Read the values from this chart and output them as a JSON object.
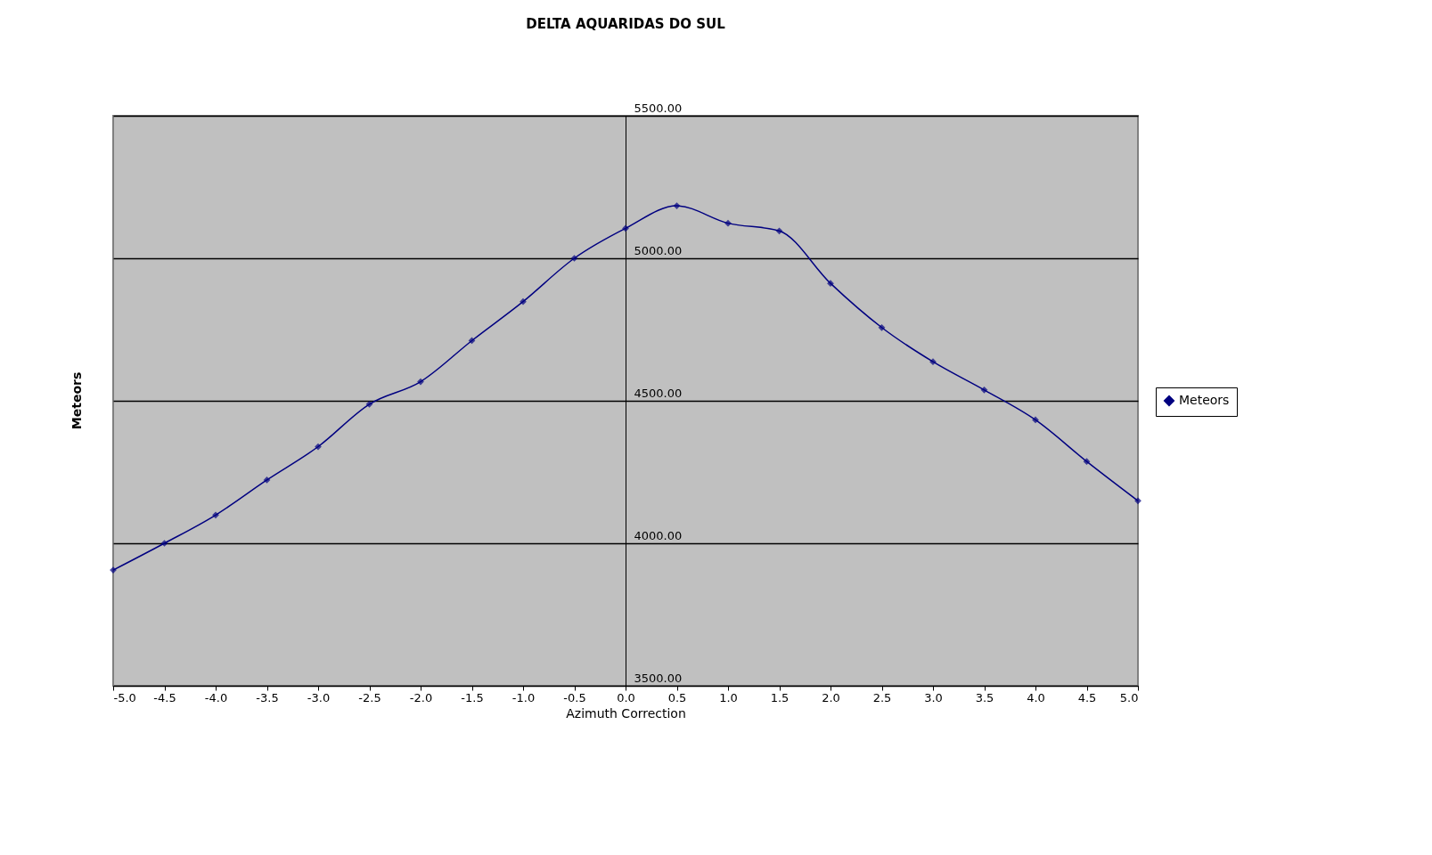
{
  "chart_data": {
    "type": "line",
    "title": "DELTA AQUARIDAS DO SUL",
    "xlabel": "Azimuth Correction",
    "ylabel": "Meteors",
    "x": [
      -5.0,
      -4.5,
      -4.0,
      -3.5,
      -3.0,
      -2.5,
      -2.0,
      -1.5,
      -1.0,
      -0.5,
      0.0,
      0.5,
      1.0,
      1.5,
      2.0,
      2.5,
      3.0,
      3.5,
      4.0,
      4.5,
      5.0
    ],
    "series": [
      {
        "name": "Meteors",
        "color": "#000080",
        "values": [
          3906,
          4000,
          4099,
          4222,
          4339,
          4488,
          4567,
          4711,
          4848,
          5000,
          5105,
          5184,
          5123,
          5096,
          4912,
          4757,
          4637,
          4538,
          4433,
          4287,
          4149
        ]
      }
    ],
    "xlim": [
      -5.0,
      5.0
    ],
    "xticks": [
      {
        "value": -5.0,
        "label": "-5.0"
      },
      {
        "value": -4.5,
        "label": "-4.5"
      },
      {
        "value": -4.0,
        "label": "-4.0"
      },
      {
        "value": -3.5,
        "label": "-3.5"
      },
      {
        "value": -3.0,
        "label": "-3.0"
      },
      {
        "value": -2.5,
        "label": "-2.5"
      },
      {
        "value": -2.0,
        "label": "-2.0"
      },
      {
        "value": -1.5,
        "label": "-1.5"
      },
      {
        "value": -1.0,
        "label": "-1.0"
      },
      {
        "value": -0.5,
        "label": "-0.5"
      },
      {
        "value": 0.0,
        "label": "0.0"
      },
      {
        "value": 0.5,
        "label": "0.5"
      },
      {
        "value": 1.0,
        "label": "1.0"
      },
      {
        "value": 1.5,
        "label": "1.5"
      },
      {
        "value": 2.0,
        "label": "2.0"
      },
      {
        "value": 2.5,
        "label": "2.5"
      },
      {
        "value": 3.0,
        "label": "3.0"
      },
      {
        "value": 3.5,
        "label": "3.5"
      },
      {
        "value": 4.0,
        "label": "4.0"
      },
      {
        "value": 4.5,
        "label": "4.5"
      },
      {
        "value": 5.0,
        "label": "5.0"
      }
    ],
    "ylim": [
      3500,
      5500
    ],
    "yticks": [
      {
        "value": 3500,
        "label": "3500.00"
      },
      {
        "value": 4000,
        "label": "4000.00"
      },
      {
        "value": 4500,
        "label": "4500.00"
      },
      {
        "value": 5000,
        "label": "5000.00"
      },
      {
        "value": 5500,
        "label": "5500.00"
      }
    ],
    "grid": "y",
    "legend": "right",
    "marker": "diamond",
    "line_style": "solid"
  }
}
